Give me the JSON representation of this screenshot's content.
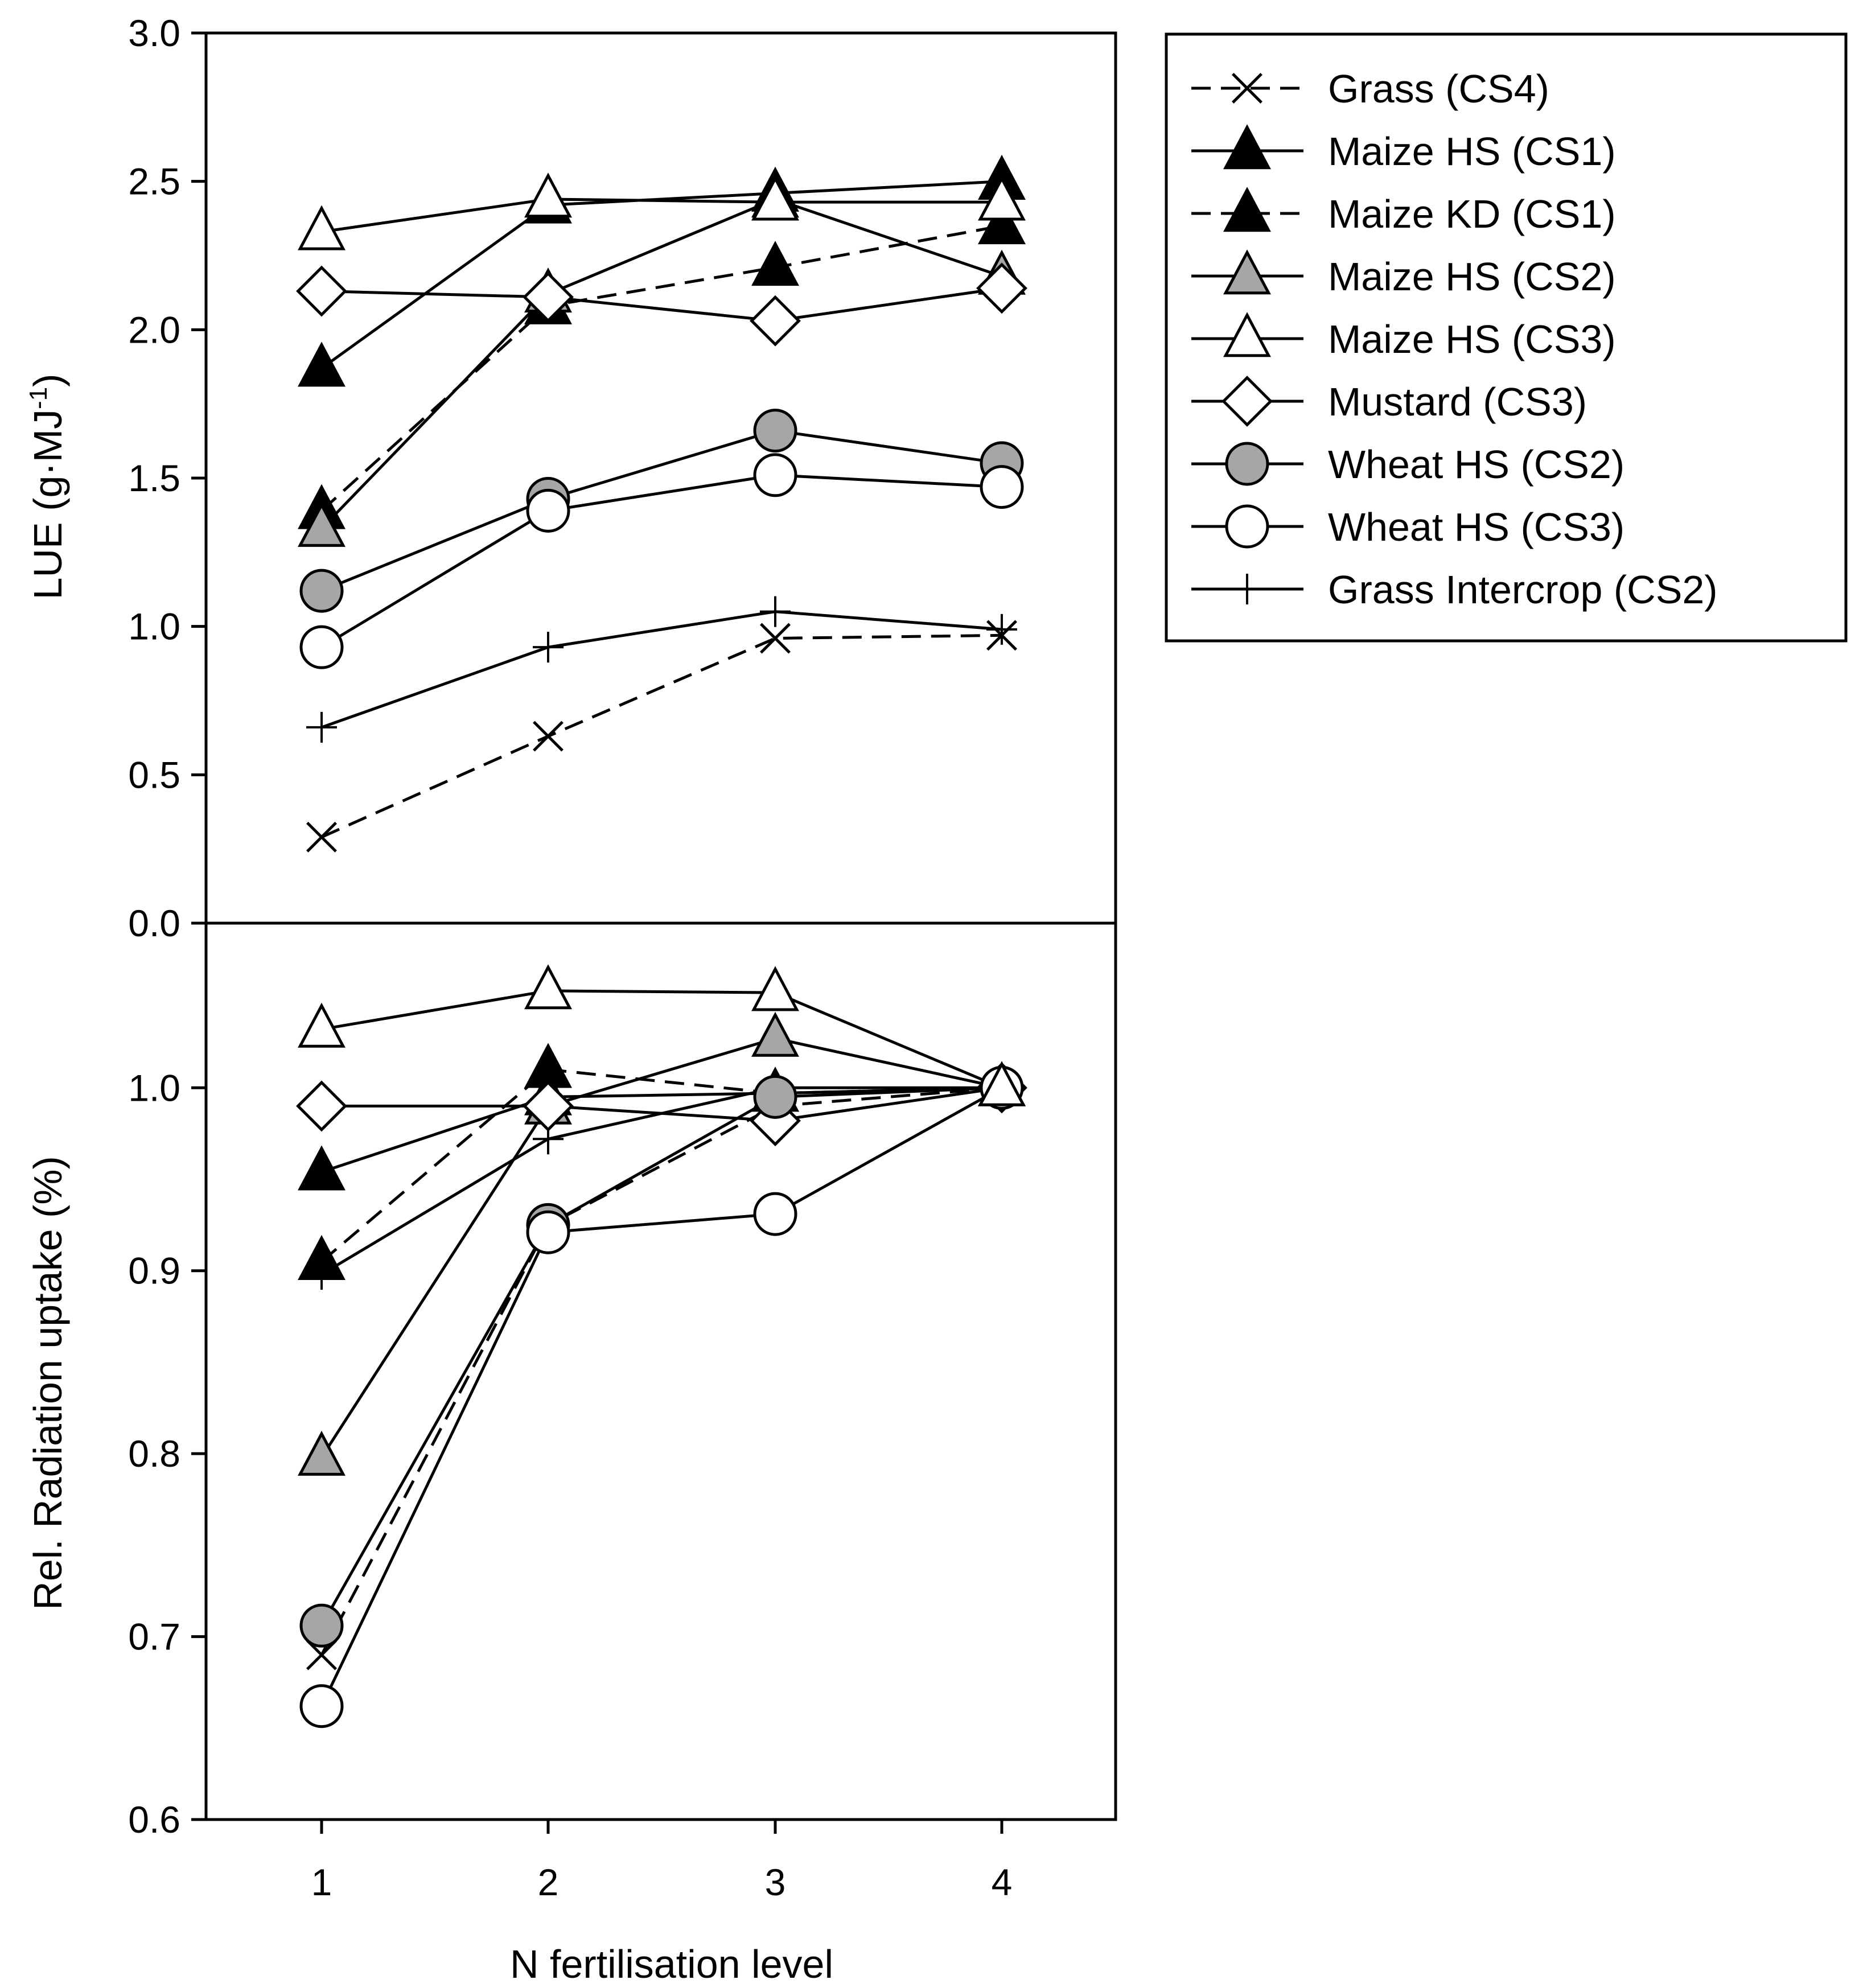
{
  "chart_data": {
    "type": "line",
    "xlabel": "N fertilisation level",
    "x": [
      1,
      2,
      3,
      4
    ],
    "x_ticks": [
      "1",
      "2",
      "3",
      "4"
    ],
    "legend": [
      {
        "name": "Grass (CS4)",
        "marker": "x",
        "dash": "dashed",
        "fill": "none"
      },
      {
        "name": "Maize HS (CS1)",
        "marker": "triangle",
        "dash": "solid",
        "fill": "#000000"
      },
      {
        "name": "Maize KD (CS1)",
        "marker": "triangle",
        "dash": "dashed",
        "fill": "#000000"
      },
      {
        "name": "Maize HS (CS2)",
        "marker": "triangle",
        "dash": "solid",
        "fill": "#a6a6a6"
      },
      {
        "name": "Maize HS (CS3)",
        "marker": "triangle",
        "dash": "solid",
        "fill": "#ffffff"
      },
      {
        "name": "Mustard (CS3)",
        "marker": "diamond",
        "dash": "solid",
        "fill": "#ffffff"
      },
      {
        "name": "Wheat HS (CS2)",
        "marker": "circle",
        "dash": "solid",
        "fill": "#a6a6a6"
      },
      {
        "name": "Wheat HS (CS3)",
        "marker": "circle",
        "dash": "solid",
        "fill": "#ffffff"
      },
      {
        "name": "Grass Intercrop (CS2)",
        "marker": "plus",
        "dash": "solid",
        "fill": "none"
      }
    ],
    "panels": [
      {
        "id": "lue",
        "ylabel_main": "LUE (g·MJ",
        "ylabel_sup": "-1",
        "ylabel_close": ")",
        "ylim": [
          0.0,
          3.0
        ],
        "y_ticks": [
          "0.0",
          "0.5",
          "1.0",
          "1.5",
          "2.0",
          "2.5",
          "3.0"
        ],
        "series": [
          {
            "name": "Grass (CS4)",
            "values": [
              0.29,
              0.63,
              0.96,
              0.97
            ]
          },
          {
            "name": "Maize HS (CS1)",
            "values": [
              1.87,
              2.42,
              2.46,
              2.5
            ]
          },
          {
            "name": "Maize KD (CS1)",
            "values": [
              1.39,
              2.08,
              2.21,
              2.35
            ]
          },
          {
            "name": "Maize HS (CS2)",
            "values": [
              1.33,
              2.12,
              2.44,
              2.18
            ]
          },
          {
            "name": "Maize HS (CS3)",
            "values": [
              2.33,
              2.44,
              2.43,
              2.43
            ]
          },
          {
            "name": "Mustard (CS3)",
            "values": [
              2.13,
              2.11,
              2.03,
              2.14
            ]
          },
          {
            "name": "Wheat HS (CS2)",
            "values": [
              1.12,
              1.43,
              1.66,
              1.55
            ]
          },
          {
            "name": "Wheat HS (CS3)",
            "values": [
              0.93,
              1.39,
              1.51,
              1.47
            ]
          },
          {
            "name": "Grass Intercrop (CS2)",
            "values": [
              0.66,
              0.93,
              1.05,
              0.99
            ]
          }
        ]
      },
      {
        "id": "radiation",
        "ylabel_main": "Rel. Radiation uptake (%)",
        "ylabel_sup": "",
        "ylabel_close": "",
        "ylim": [
          0.6,
          1.09
        ],
        "y_ticks": [
          "0.6",
          "0.7",
          "0.8",
          "0.9",
          "1.0"
        ],
        "series": [
          {
            "name": "Grass (CS4)",
            "values": [
              0.69,
              0.925,
              0.99,
              1.0
            ]
          },
          {
            "name": "Maize HS (CS1)",
            "values": [
              0.954,
              0.995,
              0.997,
              1.0
            ]
          },
          {
            "name": "Maize KD (CS1)",
            "values": [
              0.905,
              1.01,
              0.997,
              1.0
            ]
          },
          {
            "name": "Maize HS (CS2)",
            "values": [
              0.798,
              0.99,
              1.027,
              1.0
            ]
          },
          {
            "name": "Maize HS (CS3)",
            "values": [
              1.032,
              1.053,
              1.052,
              1.0
            ]
          },
          {
            "name": "Mustard (CS3)",
            "values": [
              0.99,
              0.99,
              0.982,
              1.0
            ]
          },
          {
            "name": "Wheat HS (CS2)",
            "values": [
              0.706,
              0.925,
              0.995,
              1.0
            ]
          },
          {
            "name": "Wheat HS (CS3)",
            "values": [
              0.662,
              0.921,
              0.931,
              1.0
            ]
          },
          {
            "name": "Grass Intercrop (CS2)",
            "values": [
              0.898,
              0.972,
              1.0,
              1.0
            ]
          }
        ]
      }
    ]
  }
}
